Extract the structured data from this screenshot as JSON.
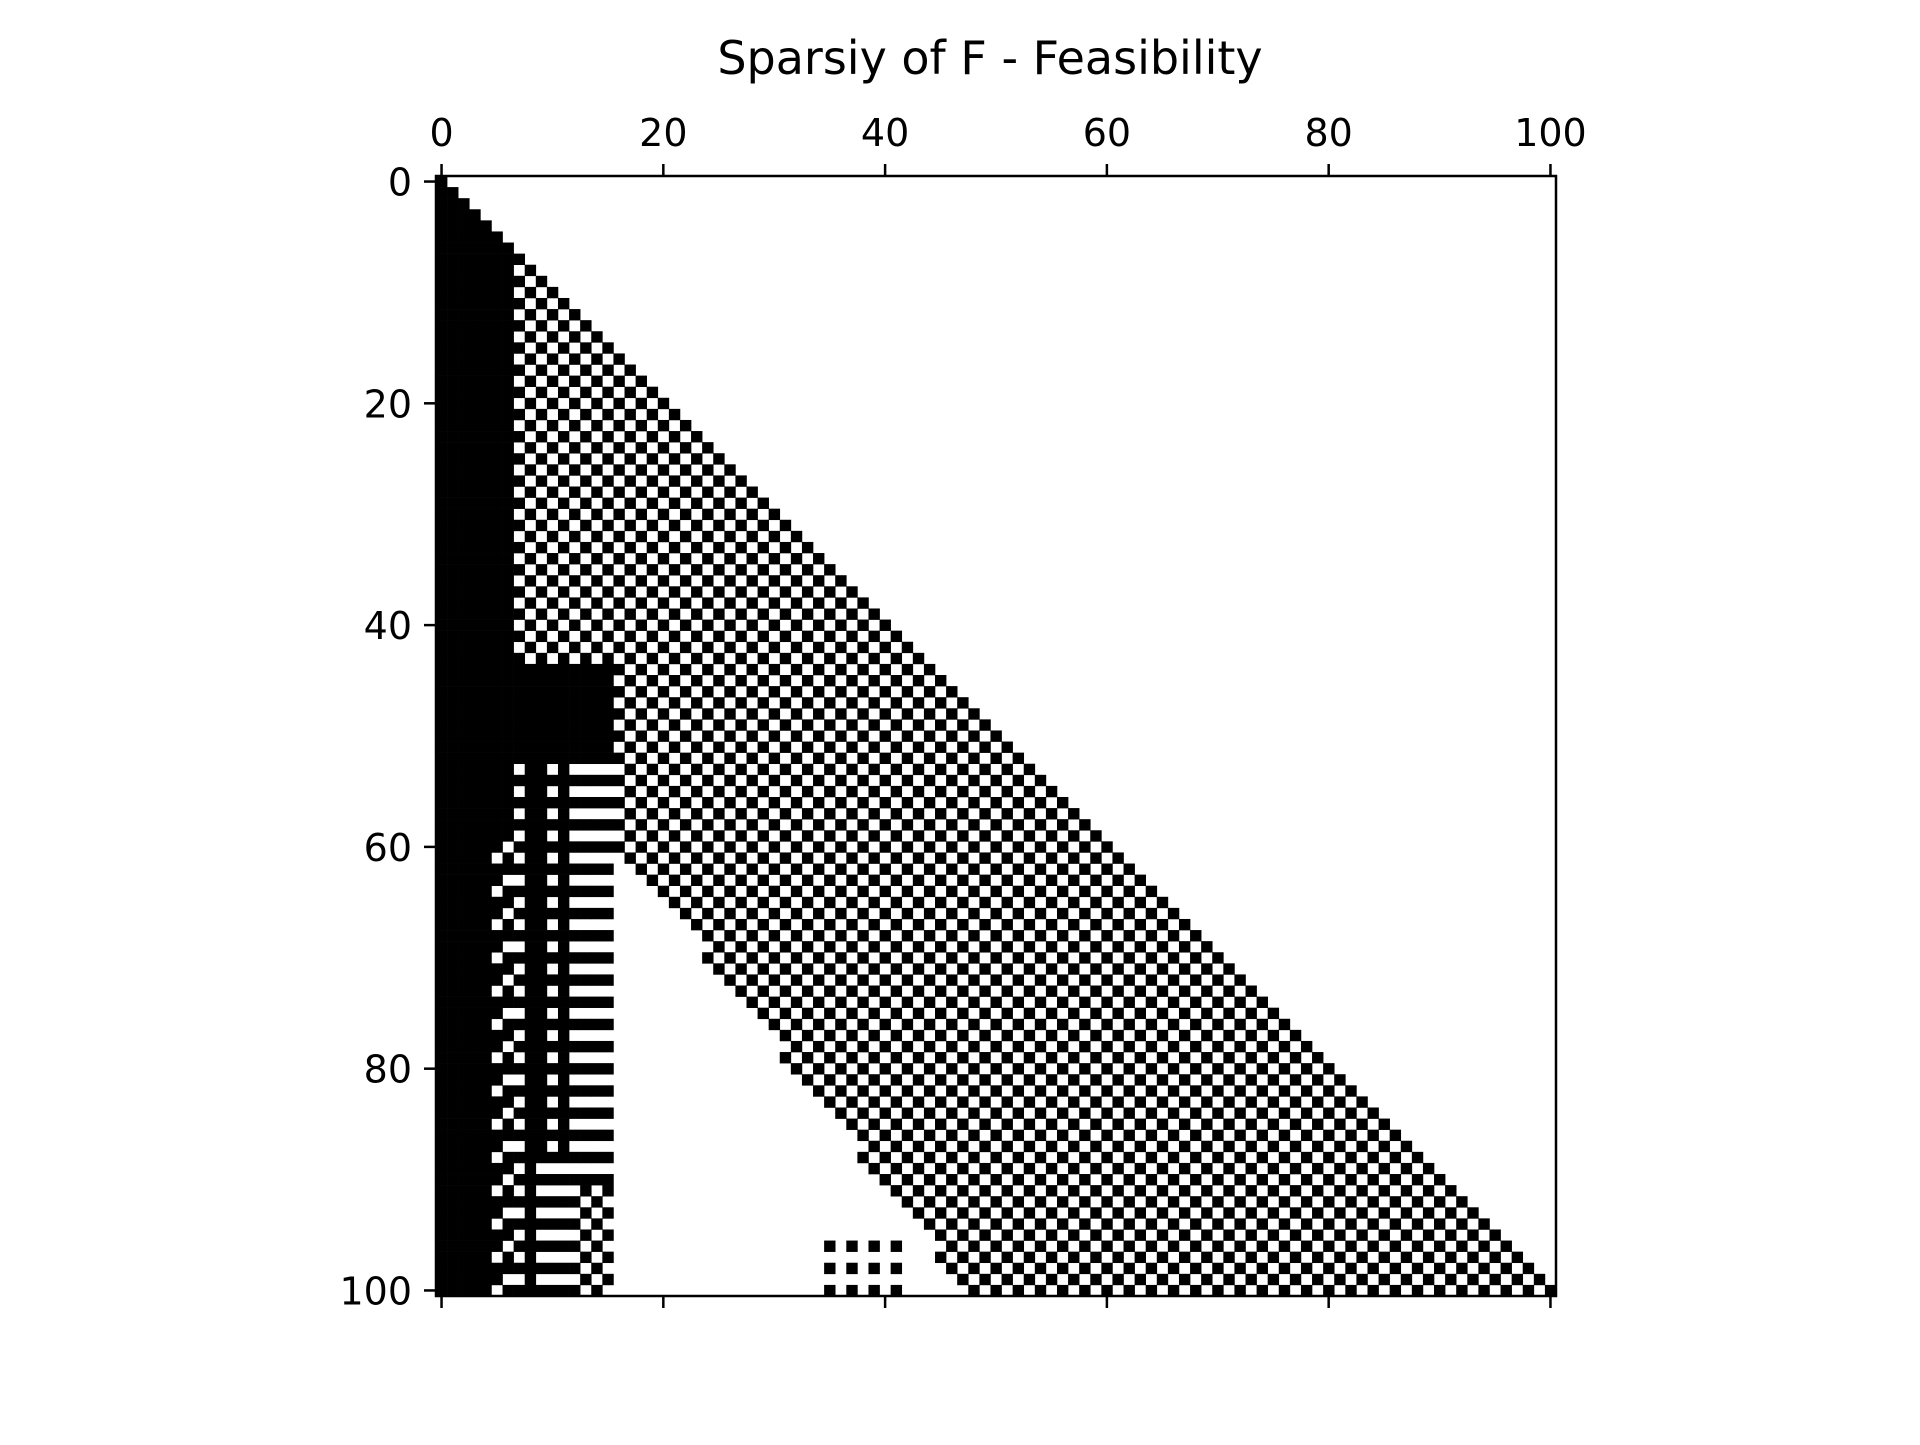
{
  "chart_data": {
    "type": "heatmap",
    "title": "Sparsiy of F - Feasibility",
    "xlabel": "",
    "ylabel": "",
    "xlim": [
      -0.5,
      100.5
    ],
    "ylim": [
      100.5,
      -0.5
    ],
    "x_ticks": [
      0,
      20,
      40,
      60,
      80,
      100
    ],
    "y_ticks": [
      0,
      20,
      40,
      60,
      80,
      100
    ],
    "x_tick_position": "top",
    "grid": false,
    "legend": "none",
    "matrix_size": 101,
    "colors": {
      "nonzero": "#000000",
      "zero": "#ffffff"
    },
    "pattern": {
      "structure": "lower-triangular",
      "diagonal": "all nonzero",
      "solid_band_cols": [
        0,
        6
      ],
      "extended_band_rows": [
        44,
        52
      ],
      "extended_band_cols": [
        7,
        15
      ],
      "checkerboard_region": "below diagonal, parity (row+col) even",
      "sparse_region": "rows 60-100, cols 16-45 mostly zero"
    }
  }
}
